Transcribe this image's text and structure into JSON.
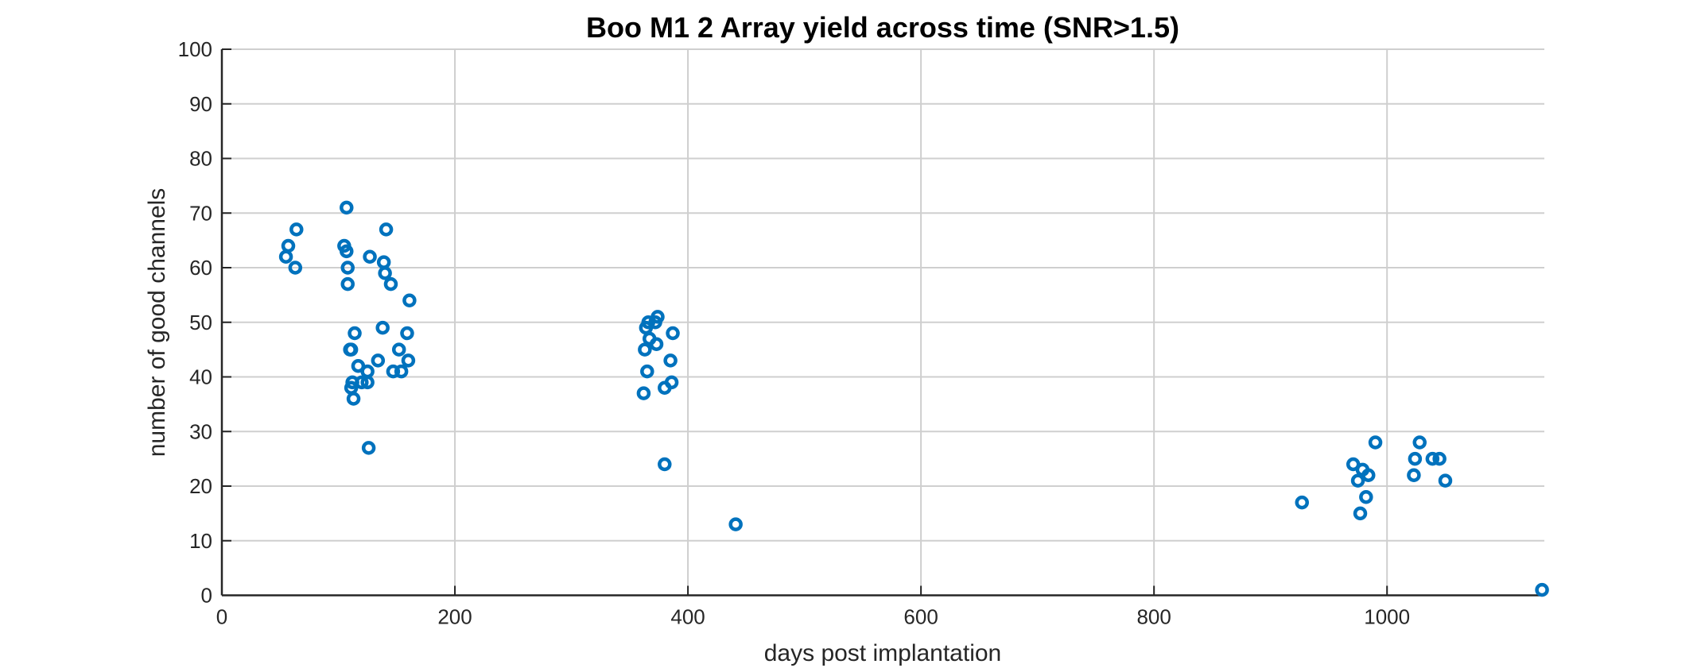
{
  "chart_data": {
    "type": "scatter",
    "title": "Boo M1 2 Array yield across time (SNR>1.5)",
    "xlabel": "days post implantation",
    "ylabel": "number of good channels",
    "xlim": [
      0,
      1135
    ],
    "ylim": [
      0,
      100
    ],
    "xticks": [
      0,
      200,
      400,
      600,
      800,
      1000
    ],
    "yticks": [
      0,
      10,
      20,
      30,
      40,
      50,
      60,
      70,
      80,
      90,
      100
    ],
    "grid": true,
    "marker": "open-circle",
    "color": "#0072BD",
    "points": [
      [
        55,
        62
      ],
      [
        57,
        64
      ],
      [
        63,
        60
      ],
      [
        64,
        67
      ],
      [
        105,
        64
      ],
      [
        107,
        63
      ],
      [
        107,
        71
      ],
      [
        108,
        60
      ],
      [
        108,
        57
      ],
      [
        110,
        45
      ],
      [
        111,
        45
      ],
      [
        111,
        38
      ],
      [
        112,
        39
      ],
      [
        113,
        36
      ],
      [
        114,
        48
      ],
      [
        117,
        42
      ],
      [
        120,
        39
      ],
      [
        125,
        41
      ],
      [
        125,
        39
      ],
      [
        126,
        27
      ],
      [
        127,
        62
      ],
      [
        134,
        43
      ],
      [
        138,
        49
      ],
      [
        139,
        61
      ],
      [
        140,
        59
      ],
      [
        141,
        67
      ],
      [
        145,
        57
      ],
      [
        147,
        41
      ],
      [
        152,
        45
      ],
      [
        154,
        41
      ],
      [
        159,
        48
      ],
      [
        160,
        43
      ],
      [
        161,
        54
      ],
      [
        362,
        37
      ],
      [
        363,
        45
      ],
      [
        364,
        49
      ],
      [
        365,
        41
      ],
      [
        366,
        50
      ],
      [
        367,
        47
      ],
      [
        372,
        50
      ],
      [
        373,
        46
      ],
      [
        374,
        51
      ],
      [
        380,
        38
      ],
      [
        380,
        24
      ],
      [
        385,
        43
      ],
      [
        386,
        39
      ],
      [
        387,
        48
      ],
      [
        441,
        13
      ],
      [
        927,
        17
      ],
      [
        971,
        24
      ],
      [
        975,
        21
      ],
      [
        977,
        15
      ],
      [
        979,
        23
      ],
      [
        982,
        18
      ],
      [
        984,
        22
      ],
      [
        990,
        28
      ],
      [
        1023,
        22
      ],
      [
        1024,
        25
      ],
      [
        1028,
        28
      ],
      [
        1039,
        25
      ],
      [
        1045,
        25
      ],
      [
        1050,
        21
      ],
      [
        1133,
        1
      ]
    ]
  }
}
